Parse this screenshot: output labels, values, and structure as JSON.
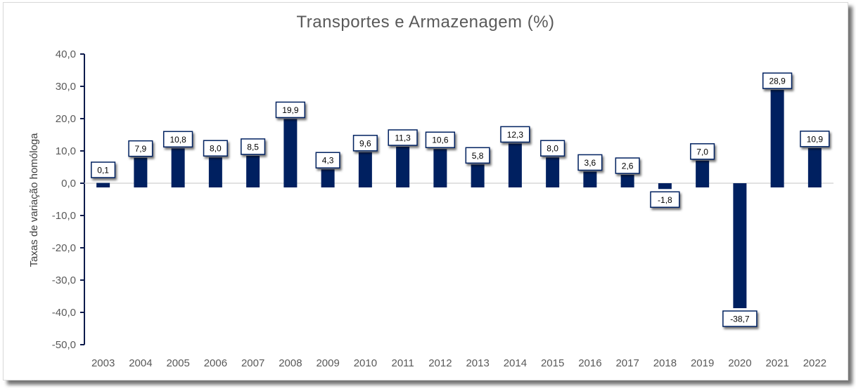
{
  "chart_data": {
    "type": "bar",
    "title": "Transportes e Armazenagem (%)",
    "xlabel": "",
    "ylabel": "Taxas de variação homóloga",
    "ylim": [
      -50,
      40
    ],
    "y_ticks": [
      "40,0",
      "30,0",
      "20,0",
      "10,0",
      "0,0",
      "-10,0",
      "-20,0",
      "-30,0",
      "-40,0",
      "-50,0"
    ],
    "y_tick_values": [
      40,
      30,
      20,
      10,
      0,
      -10,
      -20,
      -30,
      -40,
      -50
    ],
    "categories": [
      "2003",
      "2004",
      "2005",
      "2006",
      "2007",
      "2008",
      "2009",
      "2010",
      "2011",
      "2012",
      "2013",
      "2014",
      "2015",
      "2016",
      "2017",
      "2018",
      "2019",
      "2020",
      "2021",
      "2022"
    ],
    "values": [
      0.1,
      7.9,
      10.8,
      8.0,
      8.5,
      19.9,
      4.3,
      9.6,
      11.3,
      10.6,
      5.8,
      12.3,
      8.0,
      3.6,
      2.6,
      -1.8,
      7.0,
      -38.7,
      28.9,
      10.9
    ],
    "data_labels": [
      "0,1",
      "7,9",
      "10,8",
      "8,0",
      "8,5",
      "19,9",
      "4,3",
      "9,6",
      "11,3",
      "10,6",
      "5,8",
      "12,3",
      "8,0",
      "3,6",
      "2,6",
      "-1,8",
      "7,0",
      "-38,7",
      "28,9",
      "10,9"
    ],
    "bar_color": "#002060",
    "grid": false,
    "legend": "none"
  }
}
